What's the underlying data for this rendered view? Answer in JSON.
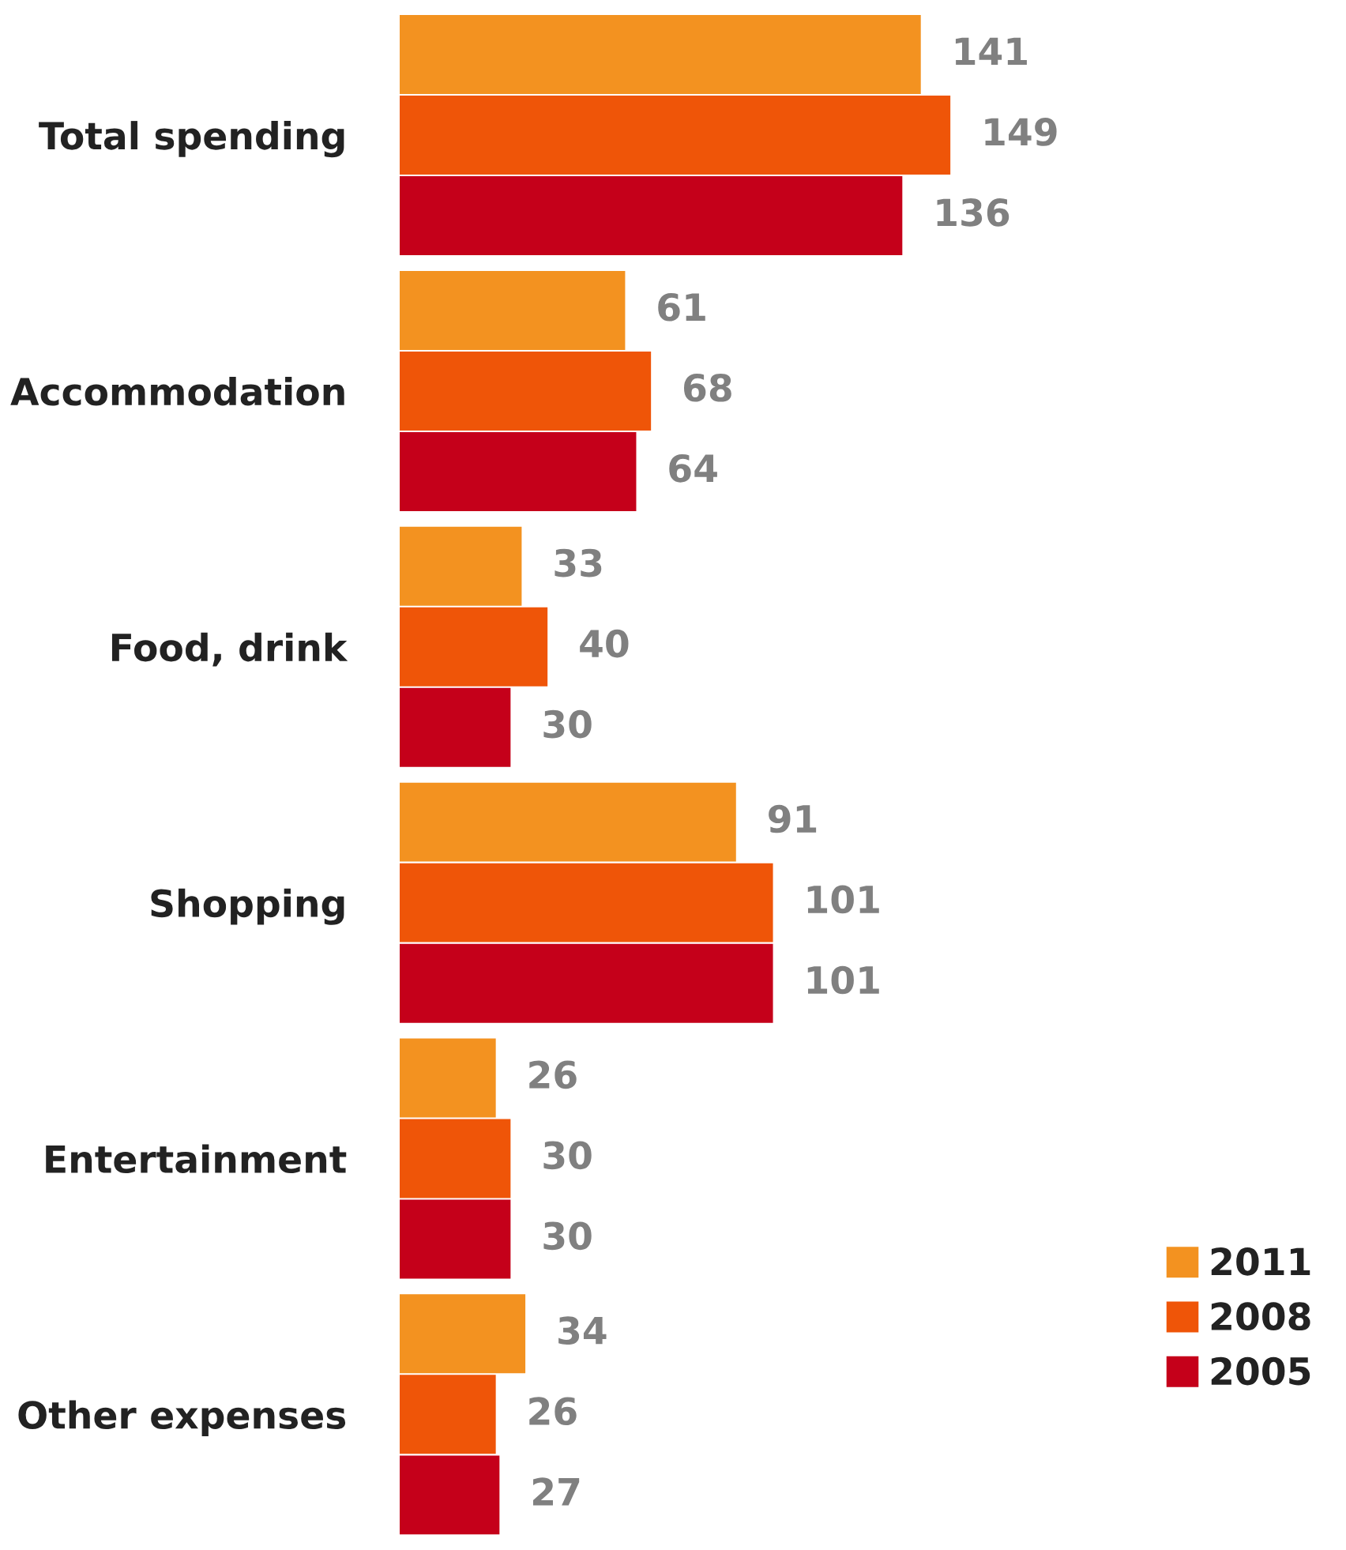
{
  "chart_data": {
    "type": "bar",
    "orientation": "horizontal",
    "categories": [
      "Total spending",
      "Accommodation",
      "Food, drink",
      "Shopping",
      "Entertainment",
      "Other expenses"
    ],
    "series": [
      {
        "name": "2011",
        "color": "#f39220",
        "values": [
          141,
          61,
          33,
          91,
          26,
          34
        ]
      },
      {
        "name": "2008",
        "color": "#ef5508",
        "values": [
          149,
          68,
          40,
          101,
          30,
          26
        ]
      },
      {
        "name": "2005",
        "color": "#c5001a",
        "values": [
          136,
          64,
          30,
          101,
          30,
          27
        ]
      }
    ],
    "data_labels": true,
    "tick_labels": "y",
    "legend": "bottom right",
    "grid": false
  }
}
